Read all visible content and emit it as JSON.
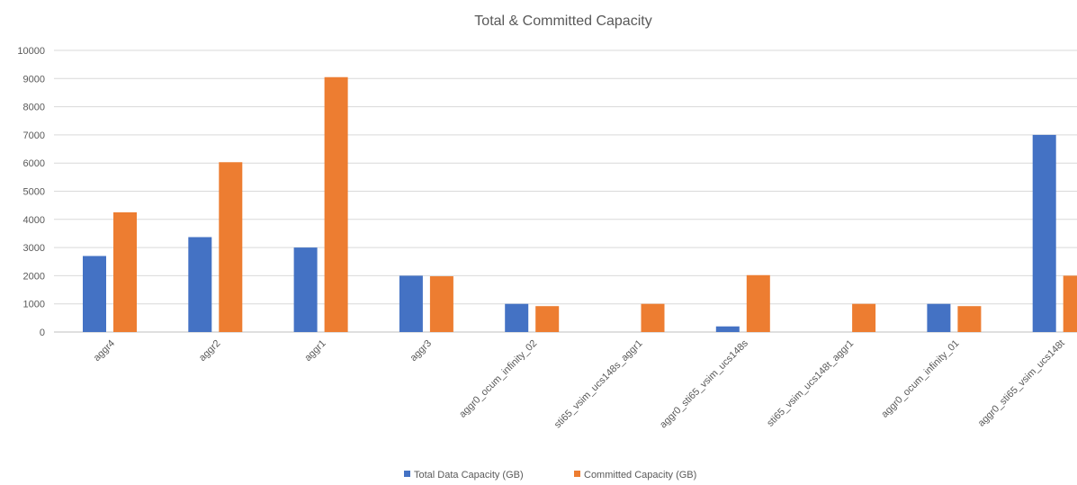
{
  "chart_data": {
    "type": "bar",
    "title": "Total & Committed Capacity",
    "xlabel": "",
    "ylabel": "",
    "ylim": [
      0,
      10000
    ],
    "yticks": [
      0,
      1000,
      2000,
      3000,
      4000,
      5000,
      6000,
      7000,
      8000,
      9000,
      10000
    ],
    "grid": true,
    "legend_position": "bottom",
    "categories": [
      "aggr4",
      "aggr2",
      "aggr1",
      "aggr3",
      "aggr0_ocum_infinity_02",
      "sti65_vsim_ucs148s_aggr1",
      "aggr0_sti65_vsim_ucs148s",
      "sti65_vsim_ucs148t_aggr1",
      "aggr0_ocum_infinity_01",
      "aggr0_sti65_vsim_ucs148t"
    ],
    "series": [
      {
        "name": "Total Data Capacity (GB)",
        "color": "#4472c4",
        "values": [
          2700,
          3370,
          3000,
          2000,
          1000,
          0,
          200,
          0,
          1000,
          7000
        ]
      },
      {
        "name": "Committed Capacity (GB)",
        "color": "#ed7d31",
        "values": [
          4250,
          6030,
          9050,
          1980,
          920,
          1000,
          2020,
          1000,
          920,
          2000
        ]
      }
    ]
  }
}
